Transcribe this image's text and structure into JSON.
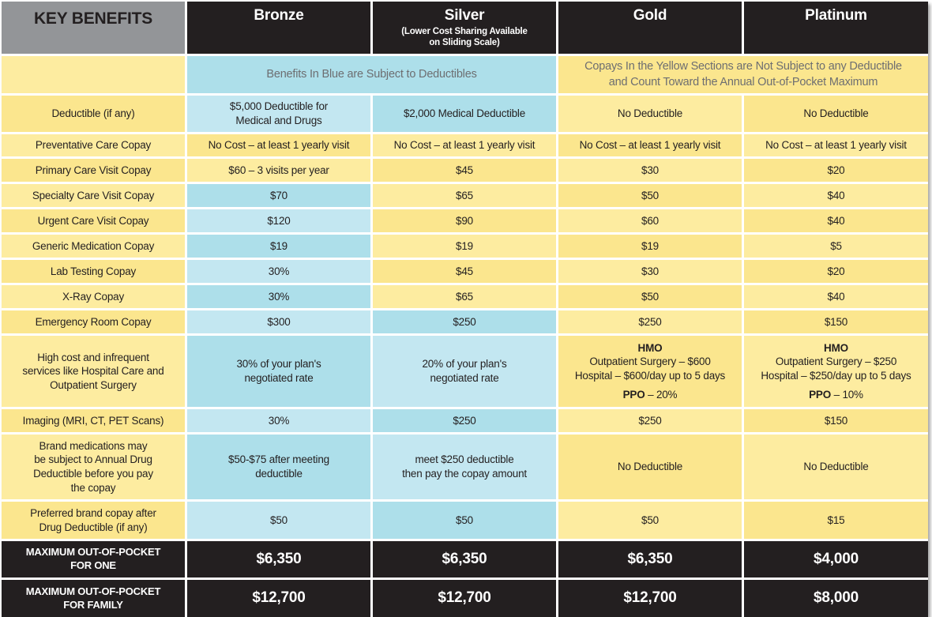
{
  "header": {
    "key_label": "KEY BENEFITS",
    "plans": [
      {
        "name": "Bronze",
        "note": ""
      },
      {
        "name": "Silver",
        "note": "(Lower Cost Sharing Available\non Sliding Scale)"
      },
      {
        "name": "Gold",
        "note": ""
      },
      {
        "name": "Platinum",
        "note": ""
      }
    ]
  },
  "banners": {
    "blue": "Benefits In Blue are Subject to Deductibles",
    "yellow": "Copays In the Yellow Sections are Not Subject to any Deductible\nand Count Toward the Annual Out-of-Pocket Maximum"
  },
  "colors": {
    "blue": "#addfea",
    "yellow": "#fbe68e",
    "dark": "#231f20",
    "gray": "#939598"
  },
  "rows": [
    {
      "label": "Deductible (if any)",
      "values": [
        "$5,000 Deductible for\nMedical and Drugs",
        "$2,000 Medical Deductible",
        "No Deductible",
        "No Deductible"
      ],
      "colors": [
        "b",
        "b",
        "y",
        "y"
      ]
    },
    {
      "label": "Preventative Care Copay",
      "values": [
        "No Cost – at least 1 yearly visit",
        "No Cost – at least 1 yearly visit",
        "No Cost – at least 1 yearly visit",
        "No Cost – at least 1 yearly visit"
      ],
      "colors": [
        "y",
        "y",
        "y",
        "y"
      ]
    },
    {
      "label": "Primary Care Visit Copay",
      "values": [
        "$60 – 3 visits per year",
        "$45",
        "$30",
        "$20"
      ],
      "colors": [
        "y",
        "y",
        "y",
        "y"
      ]
    },
    {
      "label": "Specialty Care Visit Copay",
      "values": [
        "$70",
        "$65",
        "$50",
        "$40"
      ],
      "colors": [
        "b",
        "y",
        "y",
        "y"
      ]
    },
    {
      "label": "Urgent Care Visit Copay",
      "values": [
        "$120",
        "$90",
        "$60",
        "$40"
      ],
      "colors": [
        "b",
        "y",
        "y",
        "y"
      ]
    },
    {
      "label": "Generic Medication Copay",
      "values": [
        "$19",
        "$19",
        "$19",
        "$5"
      ],
      "colors": [
        "b",
        "y",
        "y",
        "y"
      ]
    },
    {
      "label": "Lab Testing Copay",
      "values": [
        "30%",
        "$45",
        "$30",
        "$20"
      ],
      "colors": [
        "b",
        "y",
        "y",
        "y"
      ]
    },
    {
      "label": "X-Ray Copay",
      "values": [
        "30%",
        "$65",
        "$50",
        "$40"
      ],
      "colors": [
        "b",
        "y",
        "y",
        "y"
      ]
    },
    {
      "label": "Emergency Room Copay",
      "values": [
        "$300",
        "$250",
        "$250",
        "$150"
      ],
      "colors": [
        "b",
        "b",
        "y",
        "y"
      ]
    },
    {
      "label": "High cost and infrequent\nservices like Hospital Care and\nOutpatient Surgery",
      "values": [
        "30% of your plan's\nnegotiated rate",
        "20% of your plan's\nnegotiated rate",
        "",
        ""
      ],
      "colors": [
        "b",
        "b",
        "y",
        "y"
      ],
      "tiers": [
        null,
        null,
        {
          "hmo": "HMO",
          "hmo_detail": "Outpatient Surgery – $600\nHospital – $600/day up to 5 days",
          "ppo": "PPO",
          "ppo_value": " – 20%"
        },
        {
          "hmo": "HMO",
          "hmo_detail": "Outpatient Surgery – $250\nHospital – $250/day up to 5 days",
          "ppo": "PPO",
          "ppo_value": " – 10%"
        }
      ]
    },
    {
      "label": "Imaging (MRI, CT, PET Scans)",
      "values": [
        "30%",
        "$250",
        "$250",
        "$150"
      ],
      "colors": [
        "b",
        "b",
        "y",
        "y"
      ]
    },
    {
      "label": "Brand medications may\nbe subject to Annual Drug\nDeductible before you pay\nthe copay",
      "values": [
        "$50-$75 after meeting\ndeductible",
        "meet $250 deductible\nthen pay the copay amount",
        "No Deductible",
        "No Deductible"
      ],
      "colors": [
        "b",
        "b",
        "y",
        "y"
      ]
    },
    {
      "label": "Preferred brand copay after\nDrug Deductible (if any)",
      "values": [
        "$50",
        "$50",
        "$50",
        "$15"
      ],
      "colors": [
        "b",
        "b",
        "y",
        "y"
      ]
    }
  ],
  "totals": [
    {
      "label": "MAXIMUM OUT-OF-POCKET\nFOR ONE",
      "values": [
        "$6,350",
        "$6,350",
        "$6,350",
        "$4,000"
      ]
    },
    {
      "label": "MAXIMUM OUT-OF-POCKET\nFOR FAMILY",
      "values": [
        "$12,700",
        "$12,700",
        "$12,700",
        "$8,000"
      ]
    }
  ]
}
